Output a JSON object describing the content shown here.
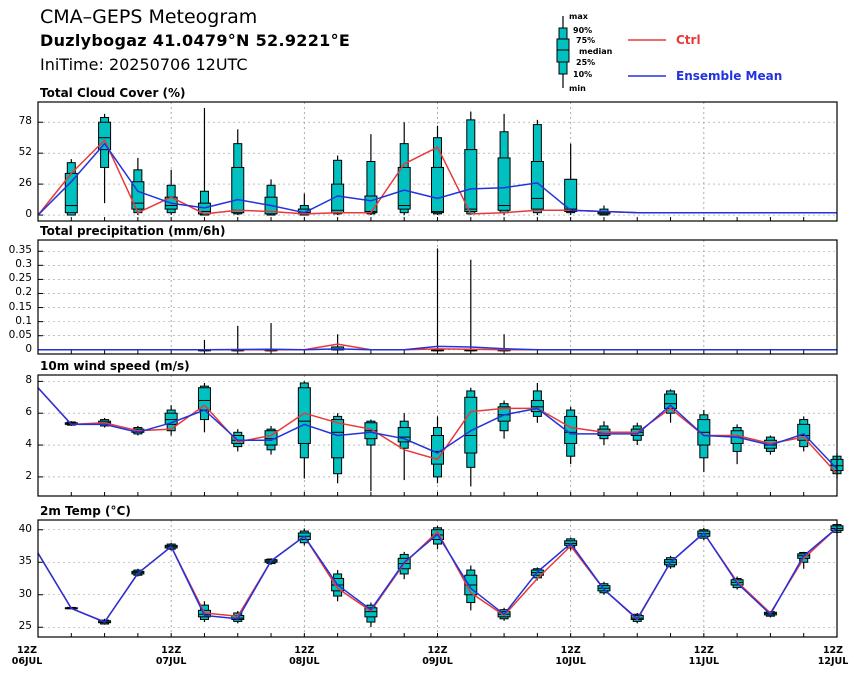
{
  "header": {
    "title": "CMA–GEPS Meteogram",
    "location": "Duzlybogaz 41.0479°N 52.9221°E",
    "init_time": "IniTime: 20250706 12UTC"
  },
  "legend": {
    "box_key": [
      "max",
      "90%",
      "75%",
      "median",
      "25%",
      "10%",
      "min"
    ],
    "ctrl": {
      "label": "Ctrl",
      "color": "#e8393a"
    },
    "mean": {
      "label": "Ensemble Mean",
      "color": "#2233dd"
    }
  },
  "colors": {
    "box_fill": "#00c0c0",
    "box_stroke": "#000000",
    "grid": "#999999"
  },
  "x_axis": {
    "labels": [
      {
        "t": 0,
        "line1": "12Z",
        "line2": "06JUL"
      },
      {
        "t": 24,
        "line1": "12Z",
        "line2": "07JUL"
      },
      {
        "t": 48,
        "line1": "12Z",
        "line2": "08JUL"
      },
      {
        "t": 72,
        "line1": "12Z",
        "line2": "09JUL"
      },
      {
        "t": 96,
        "line1": "12Z",
        "line2": "10JUL"
      },
      {
        "t": 120,
        "line1": "12Z",
        "line2": "11JUL"
      },
      {
        "t": 144,
        "line1": "12Z",
        "line2": "12JUL"
      }
    ]
  },
  "chart_data": [
    {
      "type": "box",
      "title": "Total Cloud Cover (%)",
      "ylim": [
        -5,
        95
      ],
      "yticks": [
        0,
        26,
        52,
        78
      ],
      "x_hours": [
        0,
        6,
        12,
        18,
        24,
        30,
        36,
        42,
        48,
        54,
        60,
        66,
        72,
        78,
        84,
        90,
        96,
        102,
        108,
        114,
        120,
        126,
        132,
        138,
        144
      ],
      "boxes": [
        null,
        [
          0,
          0,
          2,
          8,
          35,
          44,
          47
        ],
        [
          10,
          40,
          55,
          65,
          78,
          82,
          85
        ],
        [
          0,
          2,
          5,
          10,
          28,
          38,
          48
        ],
        [
          0,
          2,
          5,
          8,
          15,
          25,
          38
        ],
        [
          0,
          0,
          1,
          3,
          10,
          20,
          90
        ],
        [
          0,
          1,
          2,
          4,
          40,
          60,
          72
        ],
        [
          0,
          0,
          1,
          3,
          15,
          25,
          30
        ],
        [
          0,
          0,
          1,
          2,
          5,
          8,
          18
        ],
        [
          0,
          1,
          2,
          4,
          26,
          46,
          50
        ],
        [
          0,
          1,
          2,
          3,
          16,
          45,
          68
        ],
        [
          0,
          2,
          5,
          8,
          40,
          60,
          78
        ],
        [
          0,
          1,
          2,
          3,
          40,
          65,
          75
        ],
        [
          0,
          1,
          3,
          5,
          55,
          80,
          87
        ],
        [
          0,
          2,
          4,
          8,
          48,
          70,
          85
        ],
        [
          0,
          2,
          5,
          14,
          45,
          76,
          80
        ],
        [
          0,
          2,
          3,
          5,
          30,
          30,
          60
        ],
        [
          0,
          0,
          1,
          2,
          3,
          5,
          8
        ],
        null,
        null,
        null,
        null,
        null,
        null,
        null
      ],
      "series": [
        {
          "name": "Ctrl",
          "values": [
            0,
            35,
            63,
            2,
            15,
            1,
            4,
            3,
            1,
            2,
            2,
            43,
            57,
            1,
            2,
            4,
            4,
            3,
            2,
            2,
            2,
            2,
            2,
            2,
            2
          ]
        },
        {
          "name": "Ensemble Mean",
          "values": [
            0,
            28,
            60,
            20,
            10,
            6,
            13,
            8,
            2,
            16,
            12,
            21,
            14,
            22,
            23,
            27,
            4,
            3,
            2,
            2,
            2,
            2,
            2,
            2,
            2
          ]
        }
      ]
    },
    {
      "type": "box",
      "title": "Total precipitation (mm/6h)",
      "ylim": [
        -0.015,
        0.39
      ],
      "yticks": [
        0,
        0.05,
        0.1,
        0.15,
        0.2,
        0.25,
        0.3,
        0.35
      ],
      "x_hours": [
        0,
        6,
        12,
        18,
        24,
        30,
        36,
        42,
        48,
        54,
        60,
        66,
        72,
        78,
        84,
        90,
        96,
        102,
        108,
        114,
        120,
        126,
        132,
        138,
        144
      ],
      "boxes": [
        null,
        null,
        null,
        null,
        null,
        [
          0,
          0,
          0,
          0,
          0,
          0,
          0.035
        ],
        [
          0,
          0,
          0,
          0,
          0,
          0,
          0.085
        ],
        [
          0,
          0,
          0,
          0,
          0,
          0,
          0.095
        ],
        null,
        [
          0,
          0,
          0,
          0,
          0.01,
          0.01,
          0.055
        ],
        null,
        null,
        [
          0,
          0,
          0,
          0,
          0,
          0,
          0.36
        ],
        [
          0,
          0,
          0,
          0,
          0,
          0,
          0.32
        ],
        [
          0,
          0,
          0,
          0,
          0,
          0,
          0.055
        ],
        null,
        null,
        null,
        null,
        null,
        null,
        null,
        null,
        null,
        null
      ],
      "series": [
        {
          "name": "Ctrl",
          "values": [
            0,
            0,
            0,
            0,
            0,
            0,
            0,
            0,
            0,
            0.02,
            0,
            0,
            0.003,
            0.002,
            0,
            0,
            0,
            0,
            0,
            0,
            0,
            0,
            0,
            0,
            0
          ]
        },
        {
          "name": "Ensemble Mean",
          "values": [
            0,
            0,
            0,
            0,
            0,
            0,
            0.001,
            0.002,
            0,
            0.003,
            0,
            0,
            0.012,
            0.01,
            0.004,
            0,
            0,
            0,
            0,
            0,
            0,
            0,
            0,
            0,
            0
          ]
        }
      ]
    },
    {
      "type": "box",
      "title": "10m wind speed (m/s)",
      "ylim": [
        0.8,
        8.4
      ],
      "yticks": [
        2,
        4,
        6,
        8
      ],
      "x_hours": [
        0,
        6,
        12,
        18,
        24,
        30,
        36,
        42,
        48,
        54,
        60,
        66,
        72,
        78,
        84,
        90,
        96,
        102,
        108,
        114,
        120,
        126,
        132,
        138,
        144
      ],
      "boxes": [
        null,
        [
          5.2,
          5.25,
          5.3,
          5.35,
          5.4,
          5.45,
          5.5
        ],
        [
          5.1,
          5.2,
          5.3,
          5.4,
          5.5,
          5.6,
          5.7
        ],
        [
          4.6,
          4.7,
          4.8,
          4.85,
          5.0,
          5.1,
          5.2
        ],
        [
          4.6,
          4.9,
          5.3,
          5.6,
          6.0,
          6.2,
          6.5
        ],
        [
          4.8,
          5.6,
          6.2,
          6.8,
          7.6,
          7.7,
          7.9
        ],
        [
          3.6,
          3.9,
          4.1,
          4.3,
          4.6,
          4.8,
          5.0
        ],
        [
          3.4,
          3.7,
          4.0,
          4.4,
          4.9,
          5.0,
          5.2
        ],
        [
          1.9,
          3.2,
          4.1,
          5.5,
          7.6,
          7.9,
          8.0
        ],
        [
          1.6,
          2.2,
          3.2,
          4.8,
          5.6,
          5.8,
          6.0
        ],
        [
          1.1,
          4.0,
          4.4,
          4.9,
          5.4,
          5.5,
          5.6
        ],
        [
          1.8,
          3.8,
          4.2,
          4.5,
          5.1,
          5.5,
          6.0
        ],
        [
          1.6,
          2.0,
          2.8,
          3.6,
          4.6,
          5.1,
          5.8
        ],
        [
          1.4,
          2.6,
          3.5,
          4.6,
          7.0,
          7.4,
          7.6
        ],
        [
          4.4,
          4.9,
          5.5,
          5.9,
          6.4,
          6.6,
          6.8
        ],
        [
          5.4,
          5.8,
          6.1,
          6.4,
          6.8,
          7.4,
          7.9
        ],
        [
          2.8,
          3.3,
          4.1,
          4.8,
          5.8,
          6.2,
          6.4
        ],
        [
          4.0,
          4.4,
          4.6,
          4.8,
          5.0,
          5.2,
          5.5
        ],
        [
          4.0,
          4.3,
          4.6,
          4.8,
          5.0,
          5.2,
          5.4
        ],
        [
          5.4,
          6.0,
          6.3,
          6.6,
          7.2,
          7.4,
          7.5
        ],
        [
          2.3,
          3.2,
          4.0,
          4.8,
          5.6,
          5.9,
          6.2
        ],
        [
          2.8,
          3.6,
          4.1,
          4.5,
          4.9,
          5.1,
          5.3
        ],
        [
          3.4,
          3.6,
          3.8,
          4.0,
          4.3,
          4.5,
          4.6
        ],
        [
          3.6,
          3.9,
          4.3,
          4.6,
          5.3,
          5.6,
          5.8
        ],
        [
          1.9,
          2.2,
          2.4,
          2.7,
          3.1,
          3.3,
          3.5
        ]
      ],
      "series": [
        {
          "name": "Ctrl",
          "values": [
            7.6,
            5.3,
            5.4,
            4.9,
            5.0,
            6.5,
            4.2,
            4.6,
            6.0,
            5.4,
            5.0,
            3.7,
            3.1,
            6.1,
            6.3,
            6.3,
            5.1,
            4.8,
            4.8,
            6.3,
            4.6,
            4.6,
            4.1,
            4.5,
            2.2
          ]
        },
        {
          "name": "Ensemble Mean",
          "values": [
            7.6,
            5.3,
            5.3,
            4.8,
            5.4,
            6.2,
            4.3,
            4.3,
            5.3,
            4.6,
            4.8,
            4.4,
            3.5,
            4.9,
            5.9,
            6.3,
            4.7,
            4.7,
            4.7,
            6.5,
            4.6,
            4.5,
            4.0,
            4.7,
            2.5
          ]
        }
      ]
    },
    {
      "type": "box",
      "title": "2m Temp (°C)",
      "ylim": [
        23.5,
        41.5
      ],
      "yticks": [
        25,
        30,
        35,
        40
      ],
      "x_hours": [
        0,
        6,
        12,
        18,
        24,
        30,
        36,
        42,
        48,
        54,
        60,
        66,
        72,
        78,
        84,
        90,
        96,
        102,
        108,
        114,
        120,
        126,
        132,
        138,
        144
      ],
      "boxes": [
        null,
        [
          27.8,
          27.85,
          27.9,
          27.95,
          28.0,
          28.05,
          28.1
        ],
        [
          25.4,
          25.5,
          25.7,
          25.8,
          26.0,
          26.1,
          26.3
        ],
        [
          32.8,
          33.0,
          33.2,
          33.4,
          33.6,
          33.8,
          34.0
        ],
        [
          36.8,
          37.0,
          37.2,
          37.4,
          37.6,
          37.8,
          38.0
        ],
        [
          25.8,
          26.2,
          26.6,
          27.0,
          27.6,
          28.4,
          29.0
        ],
        [
          25.6,
          25.9,
          26.2,
          26.4,
          26.8,
          27.2,
          27.5
        ],
        [
          34.6,
          34.8,
          35.0,
          35.2,
          35.4,
          35.5,
          35.6
        ],
        [
          37.6,
          38.0,
          38.5,
          39.0,
          39.5,
          39.8,
          40.2
        ],
        [
          29.0,
          29.8,
          30.6,
          31.5,
          32.5,
          33.2,
          33.8
        ],
        [
          25.0,
          25.8,
          26.6,
          27.4,
          28.0,
          28.4,
          28.8
        ],
        [
          32.4,
          33.2,
          34.0,
          34.8,
          35.6,
          36.2,
          36.6
        ],
        [
          37.0,
          37.8,
          38.5,
          39.2,
          40.0,
          40.3,
          40.6
        ],
        [
          27.6,
          28.8,
          30.0,
          31.5,
          33.0,
          33.8,
          34.5
        ],
        [
          26.0,
          26.3,
          26.6,
          27.0,
          27.4,
          27.7,
          28.0
        ],
        [
          32.2,
          32.6,
          33.0,
          33.4,
          33.8,
          34.0,
          34.2
        ],
        [
          36.8,
          37.2,
          37.6,
          37.9,
          38.3,
          38.6,
          38.8
        ],
        [
          30.0,
          30.3,
          30.6,
          31.0,
          31.4,
          31.7,
          32.0
        ],
        [
          25.6,
          25.9,
          26.2,
          26.4,
          26.8,
          27.0,
          27.2
        ],
        [
          34.0,
          34.3,
          34.6,
          35.0,
          35.4,
          35.7,
          36.0
        ],
        [
          38.4,
          38.7,
          39.0,
          39.4,
          39.8,
          40.0,
          40.3
        ],
        [
          30.8,
          31.1,
          31.5,
          31.9,
          32.3,
          32.5,
          32.8
        ],
        [
          26.5,
          26.7,
          26.9,
          27.1,
          27.3,
          27.4,
          27.5
        ],
        [
          34.0,
          35.0,
          35.6,
          36.0,
          36.3,
          36.5,
          36.6
        ],
        [
          39.3,
          39.6,
          39.9,
          40.2,
          40.6,
          40.8,
          41.0
        ]
      ],
      "series": [
        {
          "name": "Ctrl",
          "values": [
            36.4,
            27.9,
            25.8,
            33.3,
            37.4,
            27.2,
            26.7,
            35.2,
            39.0,
            31.0,
            27.5,
            34.8,
            39.7,
            30.3,
            26.8,
            32.5,
            37.5,
            30.8,
            26.2,
            35.0,
            39.5,
            32.0,
            27.2,
            35.6,
            40.3
          ]
        },
        {
          "name": "Ensemble Mean",
          "values": [
            36.4,
            27.9,
            25.8,
            33.3,
            37.4,
            26.8,
            26.3,
            35.2,
            39.0,
            31.5,
            27.7,
            35.0,
            39.3,
            31.0,
            27.0,
            33.5,
            37.9,
            30.8,
            26.3,
            35.0,
            39.5,
            31.8,
            27.0,
            36.0,
            40.3
          ]
        }
      ]
    }
  ]
}
